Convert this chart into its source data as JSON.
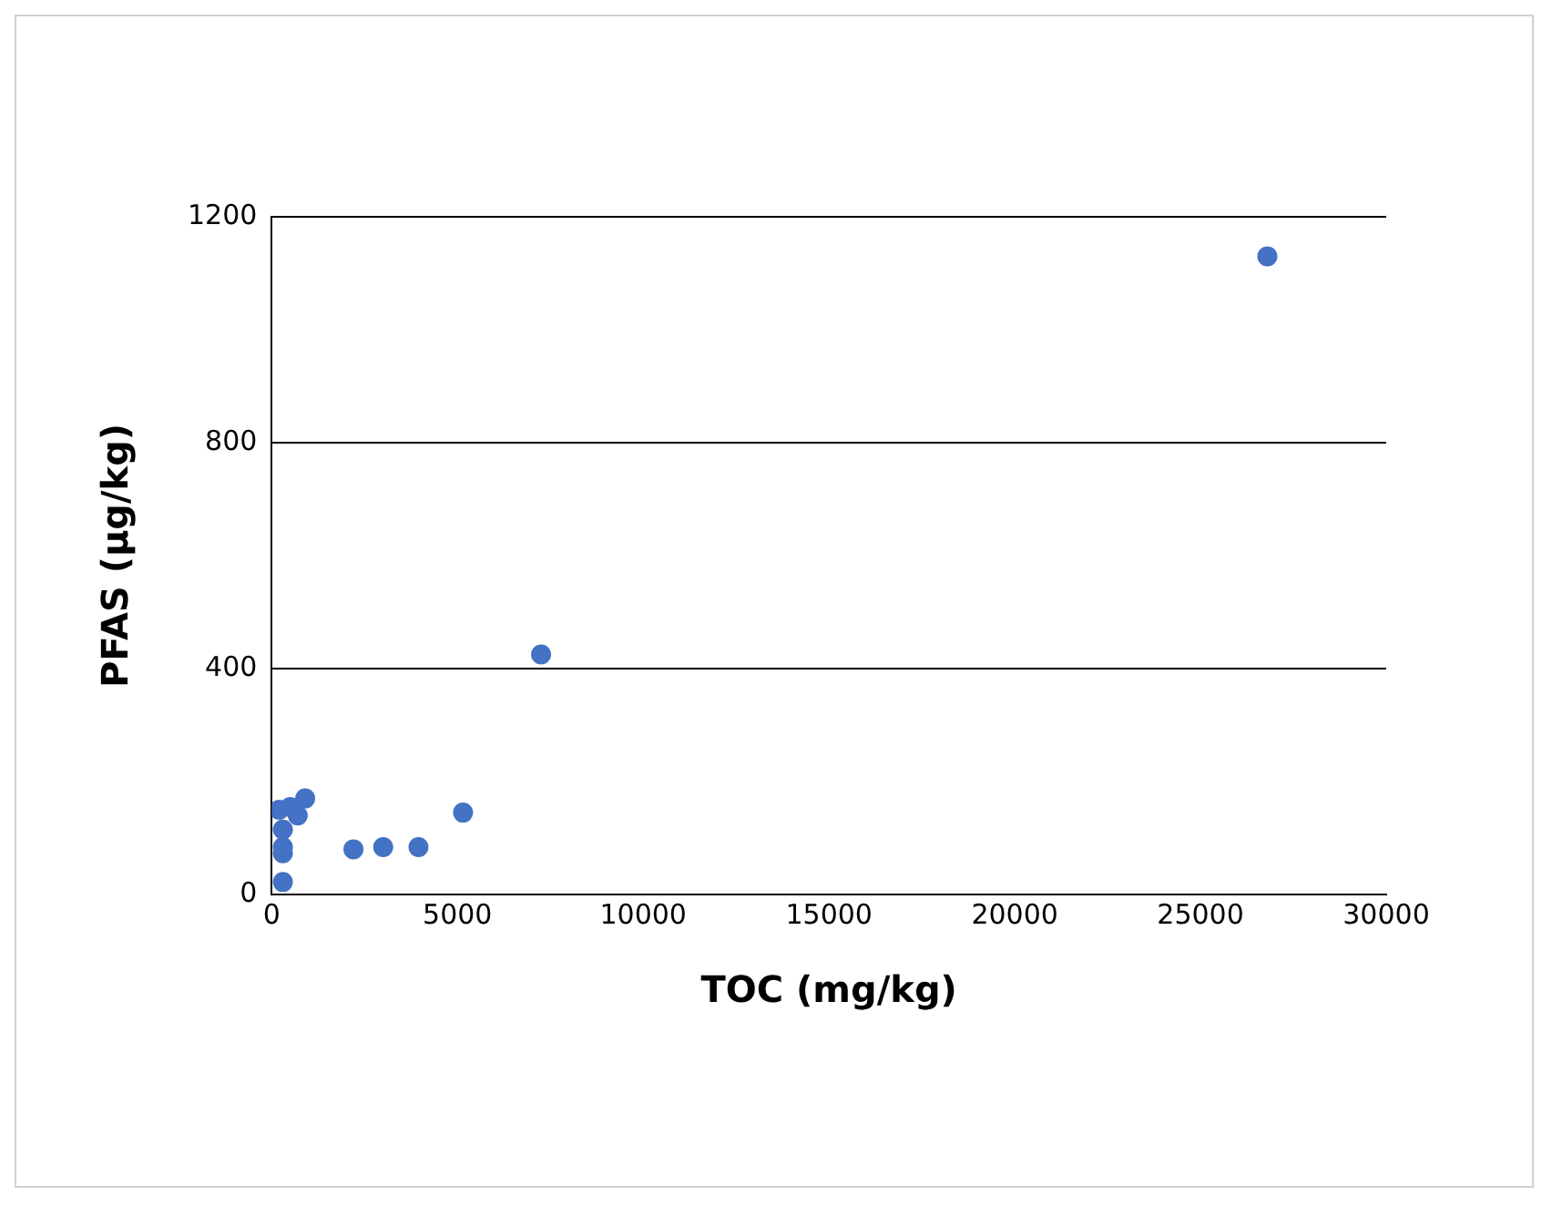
{
  "chart_data": {
    "type": "scatter",
    "xlabel": "TOC (mg/kg)",
    "ylabel": "PFAS (µg/kg)",
    "x": [
      26800,
      7250,
      5150,
      3950,
      3000,
      2200,
      900,
      300,
      300,
      300,
      300,
      200,
      500,
      700
    ],
    "values": [
      1130,
      425,
      145,
      84,
      84,
      80,
      170,
      22,
      73,
      84,
      115,
      150,
      155,
      140
    ],
    "color": "#4472c4",
    "marker": "circle",
    "xlim": [
      0,
      30000
    ],
    "xticks": [
      0,
      5000,
      10000,
      15000,
      20000,
      25000,
      30000
    ],
    "ylim": [
      0,
      1200
    ],
    "yticks": [
      0,
      400,
      800,
      1200
    ],
    "grid": "y",
    "legend": false
  }
}
